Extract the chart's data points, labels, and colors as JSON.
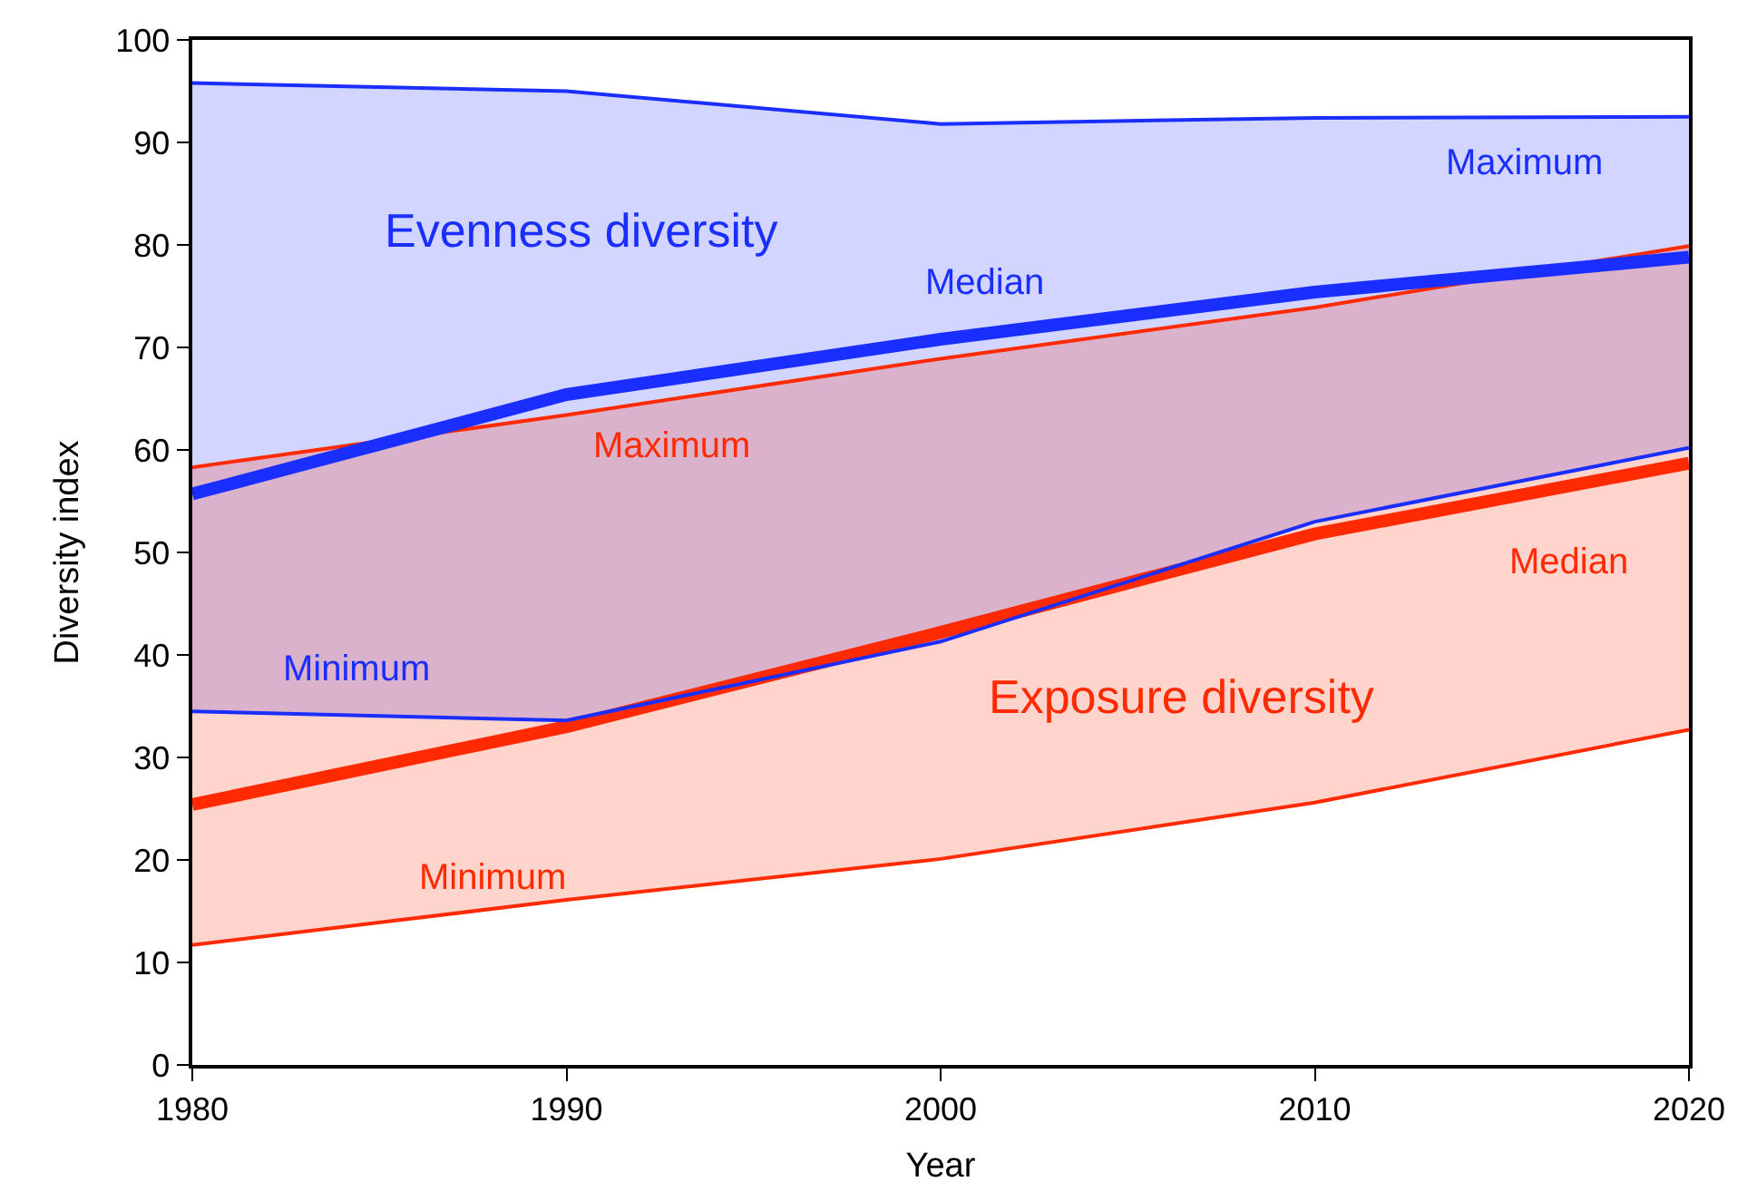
{
  "chart_data": {
    "type": "line",
    "x": [
      1980,
      1990,
      2000,
      2010,
      2020
    ],
    "xlabel": "Year",
    "ylabel": "Diversity index",
    "xlim": [
      1980,
      2020
    ],
    "xticks": [
      1980,
      1990,
      2000,
      2010,
      2020
    ],
    "ylim": [
      0,
      100
    ],
    "yticks": [
      0,
      10,
      20,
      30,
      40,
      50,
      60,
      70,
      80,
      90,
      100
    ],
    "legend": false,
    "marker": "none",
    "line_style": "solid",
    "series": [
      {
        "name": "Maximum",
        "color": "#1a2eff",
        "values": [
          95.8,
          95,
          91.8,
          92.4,
          92.5
        ]
      },
      {
        "name": "Median",
        "color": "#1a2eff",
        "values": [
          55.7,
          65.4,
          70.8,
          75.4,
          78.8
        ],
        "lower": [
          34.5,
          33.6,
          41.3,
          53,
          60.2
        ],
        "upper": [
          95.8,
          95,
          91.8,
          92.4,
          92.5
        ]
      },
      {
        "name": "Minimum",
        "color": "#1a2eff",
        "values": [
          34.5,
          33.6,
          41.3,
          53,
          60.2
        ]
      },
      {
        "name": "Maximum",
        "color": "#ff2a00",
        "values": [
          58.3,
          63.4,
          68.9,
          73.9,
          79.9
        ]
      },
      {
        "name": "Median",
        "color": "#ff2a00",
        "values": [
          25.4,
          33,
          42.2,
          51.8,
          58.7
        ],
        "lower": [
          11.7,
          16.1,
          20.1,
          25.6,
          32.7
        ],
        "upper": [
          58.3,
          63.4,
          68.9,
          73.9,
          79.9
        ]
      },
      {
        "name": "Minimum",
        "color": "#ff2a00",
        "values": [
          11.7,
          16.1,
          20.1,
          25.6,
          32.7
        ]
      }
    ],
    "annotations": [
      "Evenness diversity",
      "Exposure diversity"
    ]
  }
}
